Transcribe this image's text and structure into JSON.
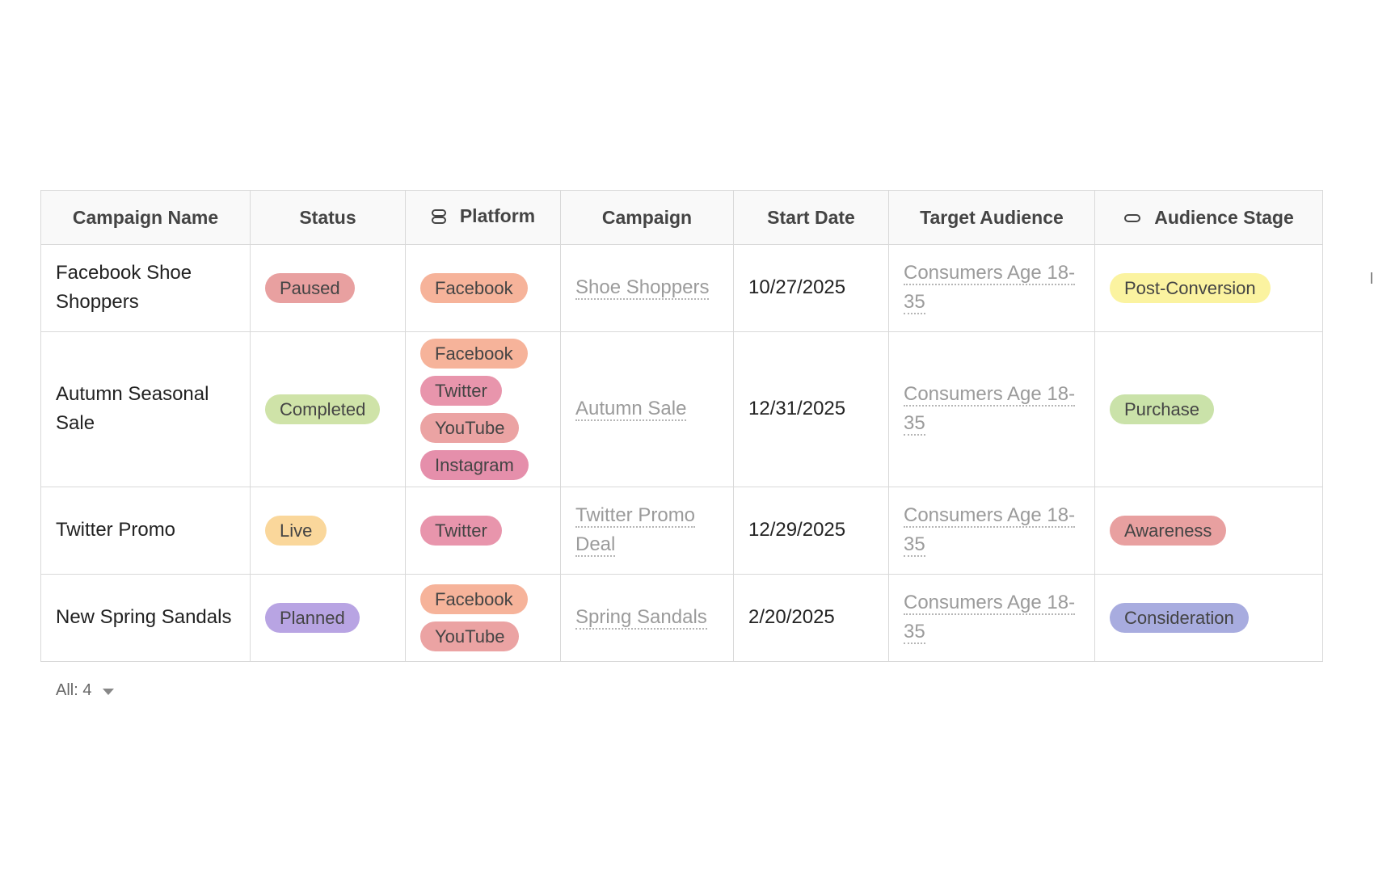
{
  "table": {
    "columns": [
      {
        "label": "Campaign Name"
      },
      {
        "label": "Status"
      },
      {
        "label": "Platform",
        "icon": "multi-select-icon"
      },
      {
        "label": "Campaign"
      },
      {
        "label": "Start Date"
      },
      {
        "label": "Target Audience"
      },
      {
        "label": "Audience Stage",
        "icon": "single-select-icon"
      }
    ],
    "rows": [
      {
        "name": "Facebook Shoe Shoppers",
        "status": {
          "label": "Paused",
          "color": "#e8a0a0"
        },
        "platforms": [
          {
            "label": "Facebook",
            "color": "#f6b39a"
          }
        ],
        "campaign": "Shoe Shoppers",
        "start_date": "10/27/2025",
        "target_audience": "Consumers Age 18-35",
        "stage": {
          "label": "Post-Conversion",
          "color": "#fbf3a0"
        }
      },
      {
        "name": "Autumn Seasonal Sale",
        "status": {
          "label": "Completed",
          "color": "#cfe3a8"
        },
        "platforms": [
          {
            "label": "Facebook",
            "color": "#f6b39a"
          },
          {
            "label": "Twitter",
            "color": "#e895ac"
          },
          {
            "label": "YouTube",
            "color": "#eba3a3"
          },
          {
            "label": "Instagram",
            "color": "#e58fab"
          }
        ],
        "campaign": "Autumn Sale",
        "start_date": "12/31/2025",
        "target_audience": "Consumers Age 18-35",
        "stage": {
          "label": "Purchase",
          "color": "#cae2a9"
        }
      },
      {
        "name": "Twitter Promo",
        "status": {
          "label": "Live",
          "color": "#fad79b"
        },
        "platforms": [
          {
            "label": "Twitter",
            "color": "#e895ac"
          }
        ],
        "campaign": "Twitter Promo Deal",
        "start_date": "12/29/2025",
        "target_audience": "Consumers Age 18-35",
        "stage": {
          "label": "Awareness",
          "color": "#e8a0a0"
        }
      },
      {
        "name": "New Spring Sandals",
        "status": {
          "label": "Planned",
          "color": "#b8a4e3"
        },
        "platforms": [
          {
            "label": "Facebook",
            "color": "#f6b39a"
          },
          {
            "label": "YouTube",
            "color": "#eba3a3"
          }
        ],
        "campaign": "Spring Sandals",
        "start_date": "2/20/2025",
        "target_audience": "Consumers Age 18-35",
        "stage": {
          "label": "Consideration",
          "color": "#a8acdf"
        }
      }
    ]
  },
  "footer": {
    "count_label": "All: 4"
  }
}
